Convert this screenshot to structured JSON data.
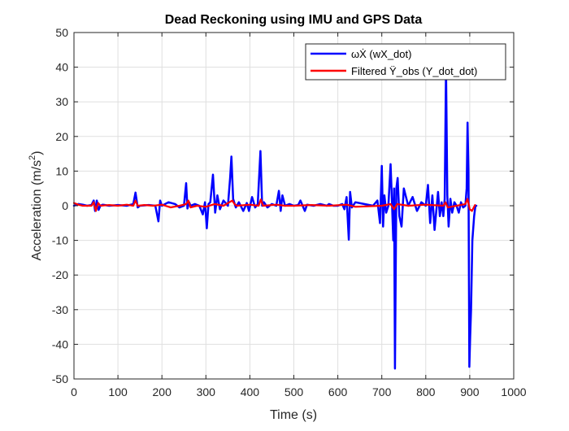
{
  "chart_data": {
    "type": "line",
    "title": "Dead Reckoning using IMU and GPS Data",
    "xlabel": "Time (s)",
    "ylabel": "Acceleration (m/s",
    "ylabel_superscript": "2",
    "ylabel_suffix": ")",
    "xlim": [
      0,
      1000
    ],
    "ylim": [
      -50,
      50
    ],
    "xticks": [
      "0",
      "100",
      "200",
      "300",
      "400",
      "500",
      "600",
      "700",
      "800",
      "900",
      "1000"
    ],
    "yticks": [
      "50",
      "40",
      "30",
      "20",
      "10",
      "0",
      "-10",
      "-20",
      "-30",
      "-40",
      "-50"
    ],
    "grid": true,
    "legend_position": "top-right",
    "series": [
      {
        "name": "ωẊ (wX_dot)",
        "color": "#0000ff",
        "x": [
          0,
          10,
          20,
          30,
          40,
          45,
          48,
          52,
          56,
          60,
          65,
          80,
          100,
          120,
          135,
          140,
          145,
          150,
          170,
          185,
          192,
          196,
          200,
          215,
          230,
          240,
          250,
          255,
          258,
          262,
          265,
          275,
          285,
          293,
          298,
          302,
          306,
          310,
          316,
          321,
          326,
          332,
          340,
          350,
          355,
          358,
          362,
          368,
          375,
          385,
          393,
          398,
          405,
          412,
          418,
          424,
          428,
          432,
          440,
          450,
          460,
          466,
          470,
          474,
          480,
          490,
          500,
          510,
          515,
          525,
          530,
          545,
          560,
          575,
          580,
          590,
          600,
          610,
          615,
          620,
          625,
          628,
          632,
          640,
          660,
          680,
          690,
          696,
          700,
          703,
          706,
          710,
          715,
          720,
          723,
          726,
          728,
          730,
          733,
          736,
          740,
          745,
          750,
          760,
          770,
          780,
          790,
          800,
          805,
          810,
          815,
          820,
          828,
          832,
          836,
          840,
          843,
          846,
          849,
          852,
          856,
          860,
          865,
          870,
          875,
          880,
          885,
          890,
          893,
          895,
          897,
          899,
          901,
          903,
          906,
          910,
          913,
          915
        ],
        "y": [
          0,
          0.5,
          0.3,
          0,
          0.2,
          1.5,
          -1.5,
          1.5,
          -1.2,
          0,
          0.3,
          0,
          0.2,
          0,
          0.5,
          3.8,
          -0.5,
          0,
          0.2,
          0,
          -4.5,
          1.5,
          0,
          1,
          0.5,
          -0.5,
          0,
          6.5,
          -0.8,
          1,
          0,
          0.5,
          0,
          -2.5,
          1,
          -6.5,
          0.5,
          1,
          9,
          -2,
          3,
          -1,
          1.5,
          0,
          8,
          14.2,
          2,
          -0.5,
          1,
          -1.5,
          0.8,
          -1.5,
          2.5,
          -0.5,
          0.5,
          15.8,
          0,
          1,
          -0.5,
          0.5,
          0,
          4.3,
          -1.5,
          3,
          0,
          0.5,
          0,
          0.2,
          1.5,
          -1.5,
          0.3,
          0,
          0.5,
          0,
          0.5,
          0,
          0,
          0.5,
          -1,
          2.5,
          -9.8,
          4,
          -0.5,
          1,
          0.5,
          0,
          1.5,
          -5,
          11.5,
          -6,
          3,
          -2,
          0,
          12,
          2,
          -10,
          5,
          -47,
          5,
          8,
          -3,
          -6,
          5,
          0,
          2.5,
          -1.5,
          1,
          0,
          6,
          -5,
          3,
          -7,
          4,
          -3,
          1,
          -3,
          2,
          40,
          3,
          -6,
          2,
          -2,
          1,
          0,
          -2,
          1,
          -0.5,
          0,
          5,
          24,
          10,
          -46.5,
          -38,
          -30,
          -10,
          -3,
          0,
          0
        ]
      },
      {
        "name": "Filtered Ÿ_obs (Y_dot_dot)",
        "color": "#ff0000",
        "x": [
          0,
          10,
          20,
          40,
          45,
          50,
          55,
          60,
          80,
          100,
          120,
          135,
          140,
          145,
          160,
          180,
          200,
          220,
          240,
          255,
          260,
          265,
          280,
          300,
          320,
          340,
          360,
          365,
          370,
          400,
          420,
          425,
          430,
          460,
          480,
          500,
          540,
          580,
          620,
          640,
          700,
          720,
          728,
          735,
          760,
          800,
          840,
          845,
          850,
          870,
          890,
          895,
          900,
          905,
          912
        ],
        "y": [
          0.8,
          0.3,
          0,
          0,
          1,
          -1.5,
          0.8,
          0,
          0.2,
          0,
          0.3,
          0,
          1.5,
          0,
          0.2,
          0,
          0.3,
          -0.5,
          0,
          0.5,
          1.5,
          -0.5,
          0,
          -0.3,
          0.5,
          0,
          1.5,
          0.5,
          0,
          0.3,
          0,
          1.8,
          0,
          0.3,
          0,
          0,
          0.2,
          0,
          0.3,
          -0.3,
          0,
          0.5,
          -1,
          0.5,
          0,
          0.3,
          0,
          1,
          -0.5,
          0,
          0.5,
          2,
          -1,
          -1.5,
          0.2
        ]
      }
    ]
  }
}
